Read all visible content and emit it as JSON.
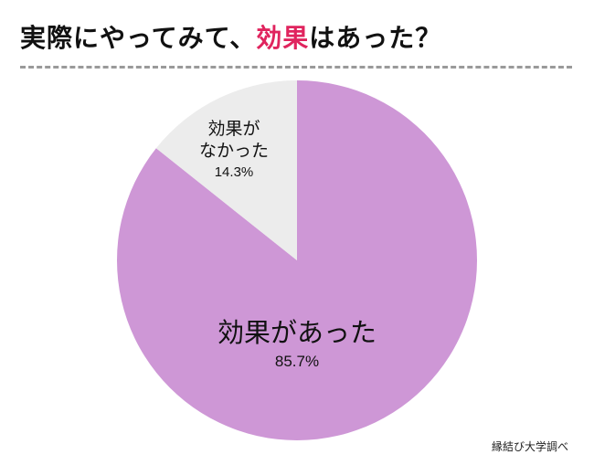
{
  "title": {
    "prefix": "実際にやってみて、",
    "highlight": "効果",
    "suffix": "はあった？"
  },
  "colors": {
    "highlight": "#e0245e",
    "yes_slice": "#ce97d6",
    "no_slice": "#ececec",
    "divider": "#9a9a9a"
  },
  "chart_data": {
    "type": "pie",
    "slices": [
      {
        "label_lines": [
          "効果があった"
        ],
        "percent_label": "85.7%",
        "value": 85.7,
        "color": "#ce97d6"
      },
      {
        "label_lines": [
          "効果が",
          "なかった"
        ],
        "percent_label": "14.3%",
        "value": 14.3,
        "color": "#ececec"
      }
    ]
  },
  "source": "縁結び大学調べ"
}
